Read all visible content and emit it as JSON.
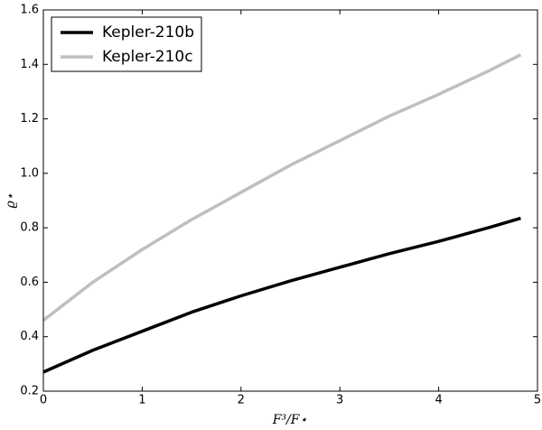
{
  "chart_data": {
    "type": "line",
    "xlabel": "F³/F⋆",
    "ylabel": "ϱ⋆",
    "x": [
      0,
      0.5,
      1,
      1.5,
      2,
      2.5,
      3,
      3.5,
      4,
      4.5,
      4.83
    ],
    "series": [
      {
        "name": "Kepler-210b",
        "color": "#000000",
        "values": [
          0.27,
          0.35,
          0.42,
          0.49,
          0.55,
          0.605,
          0.655,
          0.705,
          0.75,
          0.8,
          0.835
        ]
      },
      {
        "name": "Kepler-210c",
        "color": "#bfbfbf",
        "values": [
          0.46,
          0.6,
          0.72,
          0.83,
          0.93,
          1.03,
          1.12,
          1.21,
          1.29,
          1.375,
          1.435
        ]
      }
    ],
    "xlim": [
      0,
      5
    ],
    "xticks": [
      0,
      1,
      2,
      3,
      4,
      5
    ],
    "ylim": [
      0.2,
      1.6
    ],
    "yticks": [
      0.2,
      0.4,
      0.6,
      0.8,
      {
        "value": 1,
        "label": "1.0"
      },
      1.2,
      1.4,
      1.6
    ],
    "legend": "upper-left"
  }
}
